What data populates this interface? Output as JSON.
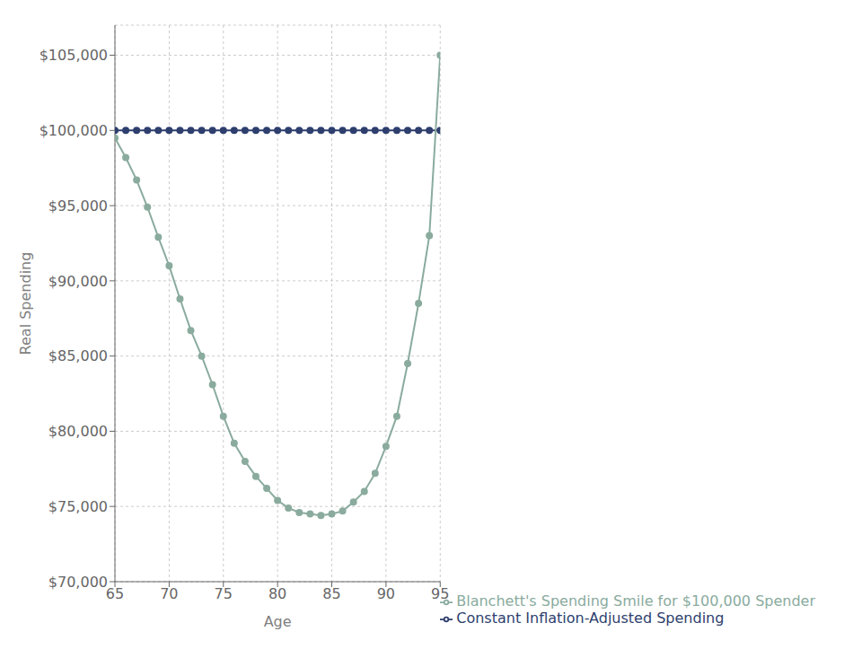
{
  "chart_data": {
    "type": "line",
    "xlabel": "Age",
    "ylabel": "Real Spending",
    "x": [
      65,
      66,
      67,
      68,
      69,
      70,
      71,
      72,
      73,
      74,
      75,
      76,
      77,
      78,
      79,
      80,
      81,
      82,
      83,
      84,
      85,
      86,
      87,
      88,
      89,
      90,
      91,
      92,
      93,
      94,
      95
    ],
    "series": [
      {
        "name": "Constant Inflation-Adjusted Spending",
        "color": "#2e3f6e",
        "marker": "circle",
        "values": [
          100000,
          100000,
          100000,
          100000,
          100000,
          100000,
          100000,
          100000,
          100000,
          100000,
          100000,
          100000,
          100000,
          100000,
          100000,
          100000,
          100000,
          100000,
          100000,
          100000,
          100000,
          100000,
          100000,
          100000,
          100000,
          100000,
          100000,
          100000,
          100000,
          100000,
          100000
        ]
      },
      {
        "name": "Blanchett's Spending Smile for $100,000 Spender",
        "color": "#8aab9e",
        "marker": "circle",
        "values": [
          99500,
          98200,
          96700,
          94900,
          92900,
          91000,
          88800,
          86700,
          85000,
          83100,
          81000,
          79200,
          78000,
          77000,
          76200,
          75400,
          74900,
          74600,
          74500,
          74400,
          74500,
          74700,
          75300,
          76000,
          77200,
          79000,
          81000,
          84500,
          88500,
          93000,
          105000
        ]
      }
    ],
    "xlim": [
      65,
      95
    ],
    "ylim": [
      70000,
      107000
    ],
    "xticks": [
      65,
      70,
      75,
      80,
      85,
      90,
      95
    ],
    "yticks": [
      {
        "value": 70000,
        "label": "$70,000"
      },
      {
        "value": 75000,
        "label": "$75,000"
      },
      {
        "value": 80000,
        "label": "$80,000"
      },
      {
        "value": 85000,
        "label": "$85,000"
      },
      {
        "value": 90000,
        "label": "$90,000"
      },
      {
        "value": 95000,
        "label": "$95,000"
      },
      {
        "value": 100000,
        "label": "$100,000"
      },
      {
        "value": 105000,
        "label": "$105,000"
      }
    ],
    "grid": true,
    "legend": "lower right"
  }
}
